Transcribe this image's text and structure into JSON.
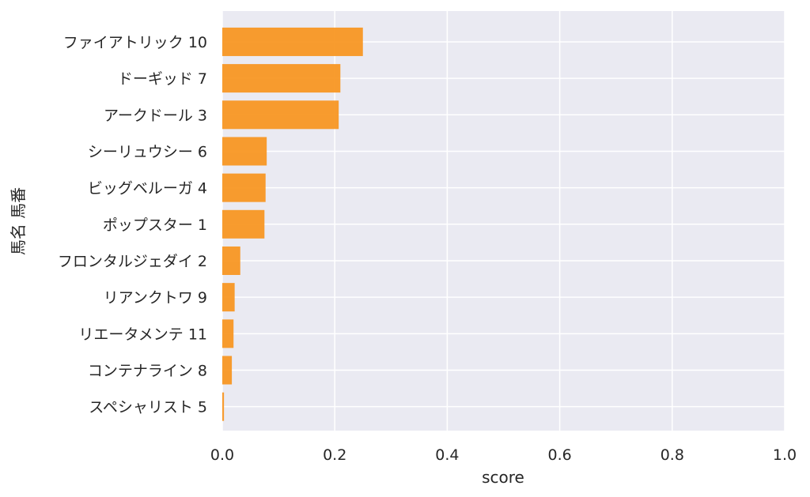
{
  "chart_data": {
    "type": "bar",
    "orientation": "horizontal",
    "categories": [
      "ファイアトリック 10",
      "ドーギッド 7",
      "アークドール 3",
      "シーリュウシー 6",
      "ビッグベルーガ 4",
      "ポップスター 1",
      "フロンタルジェダイ 2",
      "リアンクトワ 9",
      "リエータメンテ 11",
      "コンテナライン 8",
      "スペシャリスト 5"
    ],
    "values": [
      0.25,
      0.21,
      0.207,
      0.079,
      0.077,
      0.075,
      0.032,
      0.022,
      0.02,
      0.017,
      0.003
    ],
    "xlabel": "score",
    "ylabel": "馬名 馬番",
    "xlim": [
      0,
      1
    ],
    "xticks": [
      "0.0",
      "0.2",
      "0.4",
      "0.6",
      "0.8",
      "1.0"
    ],
    "grid": true,
    "colors": {
      "bar": "#f7941d",
      "background": "#eaeaf2",
      "grid": "#ffffff",
      "text": "#262626"
    }
  }
}
